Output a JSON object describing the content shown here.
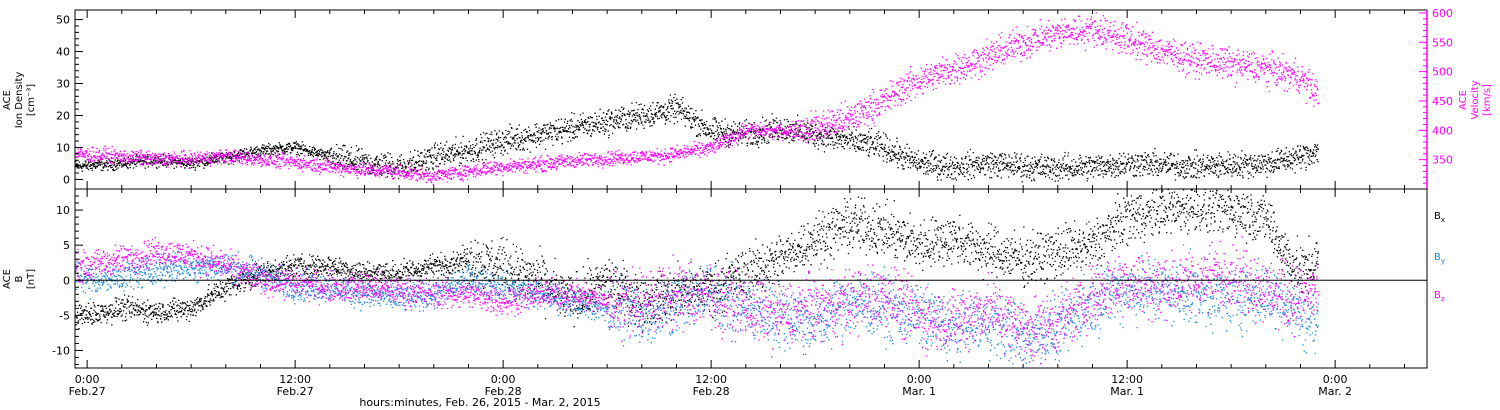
{
  "colors": {
    "black": "#000000",
    "magenta": "#ff00ff",
    "blue": "#1a8ad8",
    "axis": "#000000",
    "background": "#ffffff"
  },
  "xaxis": {
    "ticks": [
      {
        "t": 0,
        "time": "0:00",
        "date": "Feb.27"
      },
      {
        "t": 12,
        "time": "12:00",
        "date": "Feb.27"
      },
      {
        "t": 24,
        "time": "0:00",
        "date": "Feb.28"
      },
      {
        "t": 36,
        "time": "12:00",
        "date": "Feb.28"
      },
      {
        "t": 48,
        "time": "0:00",
        "date": "Mar. 1"
      },
      {
        "t": 60,
        "time": "12:00",
        "date": "Mar. 1"
      },
      {
        "t": 72,
        "time": "0:00",
        "date": "Mar. 2"
      }
    ],
    "label": "hours:minutes, Feb. 26, 2015 - Mar.  2, 2015"
  },
  "chart_data": [
    {
      "type": "scatter",
      "panel": "top",
      "x_units": "hours since Feb. 27, 2015 00:00",
      "xlim": [
        -0.7,
        77.3
      ],
      "ylim": [
        -3,
        53
      ],
      "y2lim": [
        300,
        605
      ],
      "yticks": [
        0,
        10,
        20,
        30,
        40,
        50
      ],
      "y2ticks": [
        350,
        400,
        450,
        500,
        550,
        600
      ],
      "ylabel": [
        "ACE",
        "Ion Density",
        "[cm⁻³]"
      ],
      "y2label": [
        "ACE",
        "Velocity",
        "[km/s]"
      ],
      "series": [
        {
          "color": "black",
          "axis": "left",
          "noise": 0.9,
          "spread_after": 14,
          "x": [
            -1,
            2,
            4,
            6,
            8,
            10,
            12,
            14,
            16,
            18,
            19,
            20,
            22,
            24,
            26,
            28,
            30,
            32,
            34,
            36,
            38,
            40,
            42,
            44,
            46,
            47,
            48,
            50,
            52,
            54,
            56,
            58,
            60,
            62,
            64,
            66,
            68,
            70,
            71
          ],
          "y": [
            4,
            5,
            6,
            5,
            7,
            9,
            10,
            7,
            5,
            4,
            5,
            7,
            9,
            12,
            14,
            16,
            18,
            20,
            22,
            15,
            14,
            16,
            14,
            12,
            10,
            7,
            5,
            4,
            5,
            4,
            3.5,
            4,
            5,
            4.5,
            4,
            4.5,
            5,
            7,
            9
          ]
        },
        {
          "color": "magenta",
          "axis": "right",
          "noise": 6,
          "spread_after": 41,
          "x": [
            -1,
            2,
            4,
            6,
            8,
            10,
            12,
            14,
            16,
            18,
            19,
            20,
            22,
            24,
            26,
            28,
            30,
            32,
            33,
            34,
            36,
            38,
            40,
            42,
            44,
            46,
            47,
            48,
            50,
            52,
            54,
            56,
            58,
            60,
            62,
            64,
            66,
            68,
            70,
            71
          ],
          "y": [
            360,
            355,
            350,
            352,
            355,
            350,
            345,
            338,
            332,
            330,
            325,
            322,
            330,
            338,
            342,
            348,
            352,
            355,
            356,
            360,
            370,
            400,
            398,
            405,
            420,
            450,
            470,
            485,
            505,
            525,
            550,
            565,
            572,
            555,
            535,
            520,
            512,
            505,
            490,
            460
          ]
        }
      ]
    },
    {
      "type": "scatter",
      "panel": "bottom",
      "x_units": "hours since Feb. 27, 2015 00:00",
      "xlim": [
        -0.7,
        77.3
      ],
      "ylim": [
        -12.5,
        13
      ],
      "yticks": [
        -10,
        -5,
        0,
        5,
        10
      ],
      "ylabel": [
        "ACE",
        "B",
        "[nT]"
      ],
      "zero_line": true,
      "series": [
        {
          "name": "Bx",
          "label_main": "B",
          "label_sub": "x",
          "color": "black",
          "noise": 0.8,
          "spread_after": 22,
          "x": [
            -1,
            0,
            2,
            4,
            6,
            8,
            10,
            12,
            14,
            16,
            18,
            20,
            22,
            24,
            26,
            28,
            30,
            32,
            34,
            36,
            38,
            40,
            42,
            44,
            46,
            48,
            50,
            52,
            54,
            56,
            58,
            60,
            62,
            64,
            66,
            68,
            69,
            70,
            71
          ],
          "y": [
            -5,
            -5,
            -4,
            -4.5,
            -4,
            -1,
            1,
            2,
            2,
            1,
            1,
            2,
            3,
            2,
            0,
            -3,
            0,
            -3,
            -2,
            -1,
            1,
            3,
            6,
            8,
            7,
            5,
            6,
            4,
            3,
            4,
            5,
            9,
            10,
            10.5,
            10,
            9,
            4,
            1,
            3
          ]
        },
        {
          "name": "By",
          "label_main": "B",
          "label_sub": "y",
          "color": "blue",
          "noise": 1.0,
          "spread_after": 30,
          "x": [
            -1,
            0,
            2,
            4,
            6,
            8,
            10,
            12,
            14,
            16,
            18,
            20,
            22,
            24,
            26,
            28,
            30,
            32,
            34,
            36,
            38,
            40,
            42,
            44,
            46,
            48,
            50,
            52,
            54,
            56,
            58,
            60,
            62,
            64,
            66,
            68,
            69,
            70,
            71
          ],
          "y": [
            1,
            0,
            0.5,
            1.5,
            2,
            2,
            1,
            -1,
            -1,
            -2,
            -2.5,
            -2,
            0,
            -1,
            -2,
            -3,
            -4,
            -5,
            -3,
            -2,
            -4,
            -5,
            -6,
            -3,
            -4,
            -5,
            -7,
            -6,
            -8,
            -7,
            -3,
            -1,
            -1.5,
            -2,
            -2.5,
            -2,
            -3,
            -5,
            -6
          ]
        },
        {
          "name": "Bz",
          "label_main": "B",
          "label_sub": "z",
          "color": "magenta",
          "noise": 1.0,
          "spread_after": 30,
          "x": [
            -1,
            0,
            2,
            4,
            6,
            8,
            10,
            12,
            14,
            16,
            18,
            20,
            22,
            24,
            26,
            28,
            30,
            32,
            34,
            36,
            38,
            40,
            42,
            44,
            46,
            48,
            50,
            52,
            54,
            56,
            58,
            60,
            62,
            64,
            66,
            68,
            69,
            70,
            71
          ],
          "y": [
            2,
            2,
            3,
            4,
            3.5,
            2,
            0,
            -0.5,
            -1,
            -1,
            -1.5,
            -2,
            -2,
            -3,
            -2,
            -2,
            -3,
            -3,
            -2,
            -2,
            -4,
            -5,
            -4,
            -3,
            -2,
            -5,
            -6,
            -4,
            -7,
            -6,
            -2,
            0,
            -1,
            0,
            1,
            -1.5,
            -2,
            -3,
            -1
          ]
        }
      ]
    }
  ]
}
